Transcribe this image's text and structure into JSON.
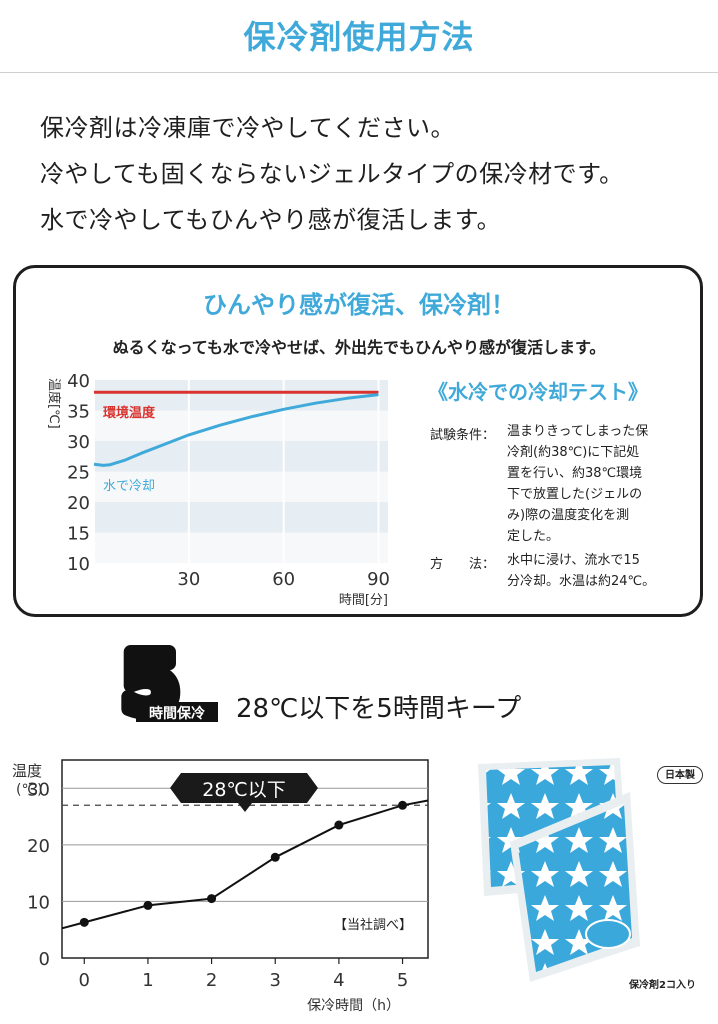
{
  "page": {
    "title": "保冷剤使用方法",
    "intro": [
      "保冷剤は冷凍庫で冷やしてください。",
      "冷やしても固くならないジェルタイプの保冷材です。",
      "水で冷やしてもひんやり感が復活します。"
    ]
  },
  "panel": {
    "heading": "ひんやり感が復活、保冷剤！",
    "subheading": "ぬるくなっても水で冷やせば、外出先でもひんやり感が復活します。",
    "test_title": "《水冷での冷却テスト》",
    "conditions_label": "試験条件：",
    "conditions_lines": [
      "温まりきってしまった保",
      "冷剤(約38℃)に下記処",
      "置を行い、約38℃環境",
      "下で放置した(ジェルの",
      "み)際の温度変化を測",
      "定した。"
    ],
    "method_label": "方　　法：",
    "method_lines": [
      "水中に浸け、流水で15",
      "分冷却。水温は約24℃。"
    ]
  },
  "keep": {
    "badge_number": "5",
    "badge_label": "時間保冷",
    "text": "28℃以下を5時間キープ"
  },
  "product": {
    "badge": "日本製",
    "caption": "保冷剤2コ入り",
    "colors": {
      "pack": "#3ba8dc",
      "star": "#ffffff"
    }
  },
  "chart_data": [
    {
      "type": "line",
      "title": "",
      "ylabel": "温度[℃]",
      "xlabel": "時間[分]",
      "ylim": [
        10,
        40
      ],
      "xlim": [
        0,
        93
      ],
      "yticks": [
        "10",
        "15",
        "20",
        "25",
        "30",
        "35",
        "40"
      ],
      "xticks": [
        "30",
        "60",
        "90"
      ],
      "grid": true,
      "series": [
        {
          "name": "環境温度",
          "color": "#d9332f",
          "x": [
            0,
            10,
            20,
            30,
            40,
            50,
            60,
            70,
            80,
            90
          ],
          "y": [
            38,
            38,
            38,
            38,
            38,
            38,
            38,
            38,
            38,
            38
          ]
        },
        {
          "name": "水で冷却",
          "color": "#3fa9d9",
          "x": [
            0,
            3,
            5,
            10,
            15,
            20,
            30,
            40,
            50,
            60,
            70,
            80,
            90
          ],
          "y": [
            26.2,
            26,
            26.1,
            26.9,
            28,
            29,
            31,
            32.6,
            34,
            35.2,
            36.2,
            37,
            37.6
          ]
        }
      ]
    },
    {
      "type": "line",
      "title": "",
      "ylabel": "温度(℃)",
      "xlabel": "保冷時間（h）",
      "ylim": [
        0,
        35
      ],
      "xlim": [
        -0.35,
        5.4
      ],
      "yticks": [
        "0",
        "10",
        "20",
        "30"
      ],
      "xticks": [
        "0",
        "1",
        "2",
        "3",
        "4",
        "5"
      ],
      "grid": true,
      "reference_line": {
        "y": 27,
        "label": "28℃以下"
      },
      "annotation": "【当社調べ】",
      "series": [
        {
          "name": "",
          "color": "#111111",
          "x": [
            0,
            1,
            2,
            3,
            4,
            5
          ],
          "y": [
            6.3,
            9.3,
            10.5,
            17.8,
            23.5,
            27
          ]
        }
      ]
    }
  ]
}
